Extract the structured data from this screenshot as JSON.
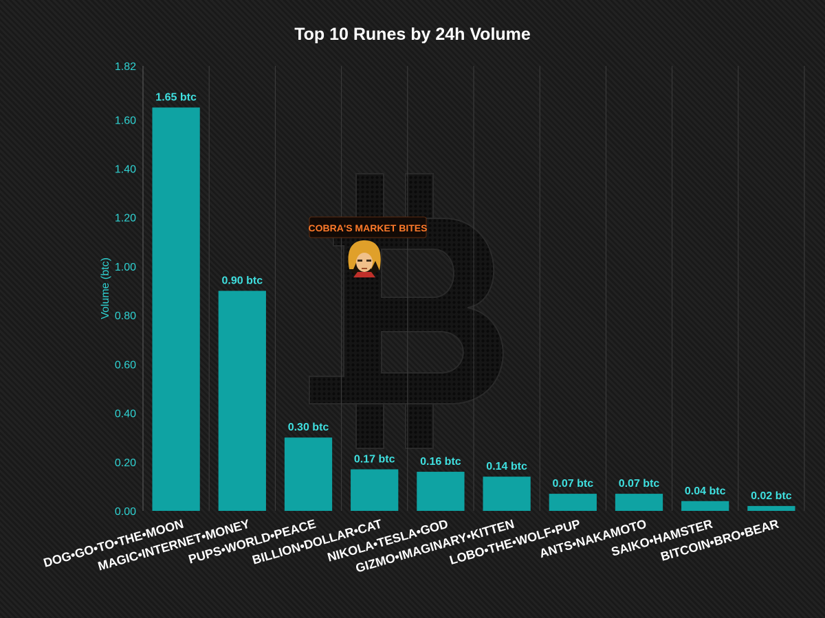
{
  "chart_data": {
    "type": "bar",
    "title": "Top 10 Runes by 24h Volume",
    "xlabel": "",
    "ylabel": "Volume (btc)",
    "ylim": [
      0,
      1.82
    ],
    "yticks": [
      "0.00",
      "0.20",
      "0.40",
      "0.60",
      "0.80",
      "1.00",
      "1.20",
      "1.40",
      "1.60",
      "1.82"
    ],
    "categories": [
      "DOG•GO•TO•THE•MOON",
      "MAGIC•INTERNET•MONEY",
      "PUPS•WORLD•PEACE",
      "BILLION•DOLLAR•CAT",
      "NIKOLA•TESLA•GOD",
      "GIZMO•IMAGINARY•KITTEN",
      "LOBO•THE•WOLF•PUP",
      "ANTS•NAKAMOTO",
      "SAIKO•HAMSTER",
      "BITCOIN•BRO•BEAR"
    ],
    "values": [
      1.65,
      0.9,
      0.3,
      0.17,
      0.16,
      0.14,
      0.07,
      0.07,
      0.04,
      0.02
    ],
    "data_labels": [
      "1.65 btc",
      "0.90 btc",
      "0.30 btc",
      "0.17 btc",
      "0.16 btc",
      "0.14 btc",
      "0.07 btc",
      "0.07 btc",
      "0.04 btc",
      "0.02 btc"
    ],
    "grid": "vertical",
    "legend": "none",
    "bar_color": "#0fa3a3"
  },
  "watermark": {
    "text": "COBRA'S MARKET BITES",
    "icon": "bitcoin-logo-icon",
    "avatar": "cartoon-avatar-icon",
    "accent": "#ff7a2a"
  }
}
